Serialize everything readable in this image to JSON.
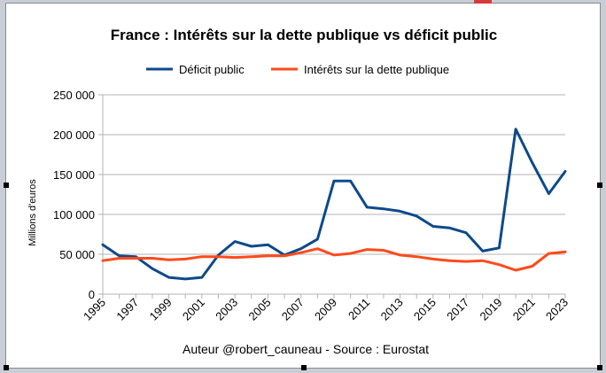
{
  "chart_data": {
    "type": "line",
    "title": "France : Intérêts sur la dette publique vs déficit public",
    "ylabel": "Millions d'euros",
    "xlabel": "",
    "footer": "Auteur @robert_cauneau - Source : Eurostat",
    "ylim": [
      0,
      250000
    ],
    "yticks": [
      0,
      50000,
      100000,
      150000,
      200000,
      250000
    ],
    "ytick_labels": [
      "0",
      "50 000",
      "100 000",
      "150 000",
      "200 000",
      "250 000"
    ],
    "x": [
      1995,
      1996,
      1997,
      1998,
      1999,
      2000,
      2001,
      2002,
      2003,
      2004,
      2005,
      2006,
      2007,
      2008,
      2009,
      2010,
      2011,
      2012,
      2013,
      2014,
      2015,
      2016,
      2017,
      2018,
      2019,
      2020,
      2021,
      2022,
      2023
    ],
    "xtick_labels": [
      "1995",
      "1997",
      "1999",
      "2001",
      "2003",
      "2005",
      "2007",
      "2009",
      "2011",
      "2013",
      "2015",
      "2017",
      "2019",
      "2021",
      "2023"
    ],
    "legend_position": "top",
    "grid": true,
    "series": [
      {
        "name": "Déficit public",
        "color": "#0e4a8a",
        "values": [
          62000,
          48000,
          47000,
          32000,
          21000,
          19000,
          21000,
          49000,
          66000,
          60000,
          62000,
          49000,
          57000,
          69000,
          142000,
          142000,
          109000,
          107000,
          104000,
          98000,
          85000,
          83000,
          77000,
          54000,
          58000,
          207000,
          165000,
          126000,
          154000
        ]
      },
      {
        "name": "Intérêts sur la dette publique",
        "color": "#ff4a1a",
        "values": [
          42000,
          45000,
          45000,
          45000,
          43000,
          44000,
          47000,
          47000,
          46000,
          47000,
          48000,
          48000,
          52000,
          57000,
          49000,
          51000,
          56000,
          55000,
          49000,
          47000,
          44000,
          42000,
          41000,
          42000,
          37000,
          30000,
          35000,
          51000,
          53000
        ]
      }
    ]
  }
}
